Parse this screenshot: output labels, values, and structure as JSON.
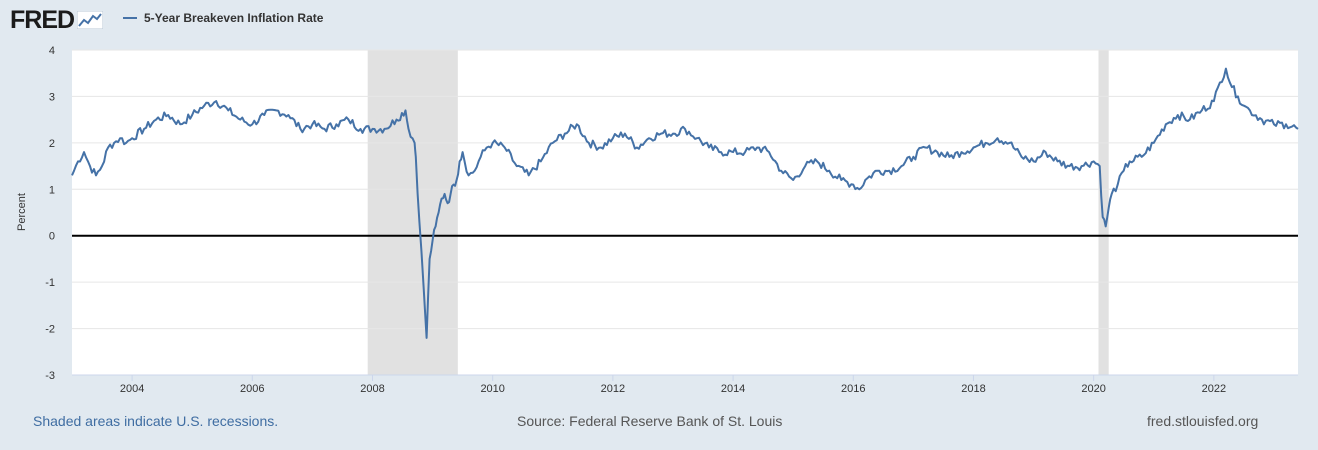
{
  "logo": {
    "text": "FRED"
  },
  "footer": {
    "note": "Shaded areas indicate U.S. recessions.",
    "source": "Source: Federal Reserve Bank of St. Louis",
    "site": "fred.stlouisfed.org"
  },
  "colors": {
    "line": "#4572a7",
    "recession": "#e1e1e1",
    "background": "#e1e9f0",
    "plot": "#ffffff",
    "zero_line": "#000000"
  },
  "chart_data": {
    "type": "line",
    "title": "",
    "xlabel": "",
    "ylabel": "Percent",
    "xlim": [
      2003.0,
      2023.4
    ],
    "ylim": [
      -3,
      4
    ],
    "x_ticks": [
      "2004",
      "2006",
      "2008",
      "2010",
      "2012",
      "2014",
      "2016",
      "2018",
      "2020",
      "2022"
    ],
    "y_ticks": [
      "4",
      "3",
      "2",
      "1",
      "0",
      "-1",
      "-2",
      "-3"
    ],
    "grid": true,
    "legend": "top-left",
    "recessions": [
      [
        2007.92,
        2009.42
      ],
      [
        2020.08,
        2020.25
      ]
    ],
    "series": [
      {
        "name": "5-Year Breakeven Inflation Rate",
        "x": [
          2003.0,
          2003.1,
          2003.2,
          2003.3,
          2003.4,
          2003.5,
          2003.6,
          2003.7,
          2003.8,
          2003.9,
          2004.0,
          2004.2,
          2004.4,
          2004.6,
          2004.8,
          2005.0,
          2005.2,
          2005.4,
          2005.6,
          2005.8,
          2006.0,
          2006.2,
          2006.4,
          2006.6,
          2006.8,
          2007.0,
          2007.2,
          2007.4,
          2007.6,
          2007.8,
          2008.0,
          2008.2,
          2008.4,
          2008.55,
          2008.6,
          2008.7,
          2008.72,
          2008.78,
          2008.85,
          2008.9,
          2008.95,
          2009.0,
          2009.05,
          2009.1,
          2009.15,
          2009.2,
          2009.25,
          2009.3,
          2009.35,
          2009.4,
          2009.45,
          2009.5,
          2009.6,
          2009.7,
          2009.8,
          2009.9,
          2010.0,
          2010.2,
          2010.4,
          2010.6,
          2010.8,
          2011.0,
          2011.2,
          2011.4,
          2011.6,
          2011.8,
          2012.0,
          2012.2,
          2012.4,
          2012.6,
          2012.8,
          2013.0,
          2013.2,
          2013.4,
          2013.6,
          2013.8,
          2014.0,
          2014.2,
          2014.4,
          2014.6,
          2014.8,
          2015.0,
          2015.2,
          2015.4,
          2015.6,
          2015.8,
          2016.0,
          2016.1,
          2016.2,
          2016.4,
          2016.6,
          2016.8,
          2017.0,
          2017.2,
          2017.4,
          2017.6,
          2017.8,
          2018.0,
          2018.2,
          2018.4,
          2018.6,
          2018.8,
          2019.0,
          2019.2,
          2019.4,
          2019.6,
          2019.8,
          2020.0,
          2020.1,
          2020.15,
          2020.2,
          2020.25,
          2020.3,
          2020.4,
          2020.5,
          2020.6,
          2020.8,
          2021.0,
          2021.2,
          2021.4,
          2021.6,
          2021.8,
          2022.0,
          2022.1,
          2022.2,
          2022.3,
          2022.4,
          2022.5,
          2022.6,
          2022.8,
          2023.0,
          2023.2,
          2023.4
        ],
        "values": [
          1.3,
          1.6,
          1.8,
          1.5,
          1.3,
          1.5,
          1.9,
          2.0,
          2.1,
          2.0,
          2.1,
          2.3,
          2.5,
          2.6,
          2.4,
          2.6,
          2.8,
          2.9,
          2.7,
          2.5,
          2.4,
          2.6,
          2.7,
          2.6,
          2.3,
          2.4,
          2.3,
          2.4,
          2.5,
          2.3,
          2.3,
          2.3,
          2.5,
          2.7,
          2.3,
          2.0,
          1.7,
          0.3,
          -1.1,
          -2.2,
          -0.5,
          -0.1,
          0.2,
          0.5,
          0.8,
          0.9,
          0.7,
          0.9,
          1.1,
          1.2,
          1.6,
          1.8,
          1.3,
          1.4,
          1.7,
          1.9,
          2.0,
          1.9,
          1.5,
          1.3,
          1.6,
          2.0,
          2.2,
          2.4,
          2.0,
          1.9,
          2.1,
          2.2,
          1.9,
          2.1,
          2.2,
          2.2,
          2.3,
          2.1,
          1.9,
          1.8,
          1.8,
          1.8,
          1.9,
          1.8,
          1.4,
          1.2,
          1.5,
          1.6,
          1.4,
          1.2,
          1.1,
          1.0,
          1.2,
          1.4,
          1.4,
          1.5,
          1.7,
          1.9,
          1.8,
          1.7,
          1.8,
          1.9,
          2.0,
          2.1,
          2.0,
          1.7,
          1.6,
          1.8,
          1.6,
          1.5,
          1.5,
          1.6,
          1.5,
          0.4,
          0.2,
          0.6,
          0.9,
          1.1,
          1.4,
          1.6,
          1.7,
          2.0,
          2.4,
          2.6,
          2.5,
          2.7,
          2.9,
          3.3,
          3.6,
          3.2,
          3.0,
          2.8,
          2.7,
          2.5,
          2.4,
          2.4,
          2.3
        ]
      }
    ]
  }
}
